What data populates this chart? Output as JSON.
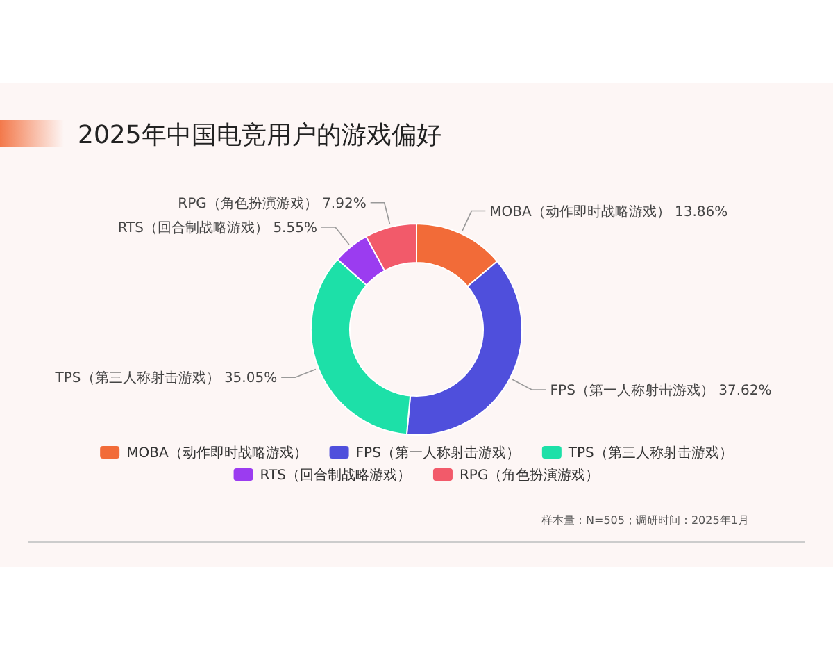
{
  "chart_data": {
    "type": "donut",
    "title": "2025年中国电竞用户的游戏偏好",
    "categories": [
      "MOBA（动作即时战略游戏）",
      "FPS（第一人称射击游戏）",
      "TPS（第三人称射击游戏）",
      "RTS（回合制战略游戏）",
      "RPG（角色扮演游戏）"
    ],
    "values": [
      13.86,
      37.62,
      35.05,
      5.55,
      7.92
    ],
    "value_labels": [
      "13.86%",
      "37.62%",
      "35.05%",
      "5.55%",
      "7.92%"
    ],
    "colors": [
      "#f26b38",
      "#4f4fdc",
      "#1de0a8",
      "#9b3cf0",
      "#f25a6a"
    ],
    "legend": "bottom",
    "annotations": [
      "样本量：N=505；调研时间：2025年1月"
    ]
  }
}
